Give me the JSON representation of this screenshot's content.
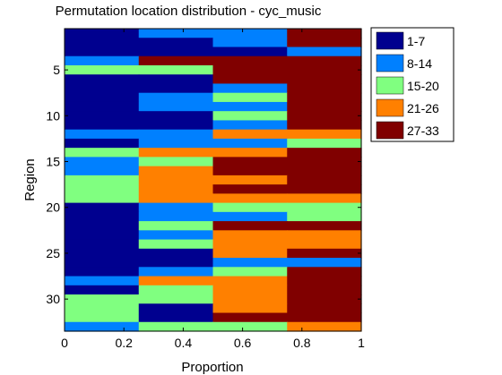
{
  "chart_data": {
    "type": "heatmap",
    "title": "Permutation location distribution - cyc_music",
    "xlabel": "Proportion",
    "ylabel": "Region",
    "xlim": [
      0,
      1
    ],
    "ylim": [
      0.5,
      33.5
    ],
    "x_ticks": [
      "0",
      "0.2",
      "0.4",
      "0.6",
      "0.8",
      "1"
    ],
    "x_tick_values": [
      0,
      0.2,
      0.4,
      0.6,
      0.8,
      1
    ],
    "y_ticks": [
      "5",
      "10",
      "15",
      "20",
      "25",
      "30"
    ],
    "y_tick_values": [
      5,
      10,
      15,
      20,
      25,
      30
    ],
    "column_bounds": [
      0,
      0.25,
      0.5,
      0.75,
      1
    ],
    "legend": [
      {
        "label": "1-7",
        "color": "#00008f"
      },
      {
        "label": "8-14",
        "color": "#0080ff"
      },
      {
        "label": "15-20",
        "color": "#80ff80"
      },
      {
        "label": "21-26",
        "color": "#ff8000"
      },
      {
        "label": "27-33",
        "color": "#800000"
      }
    ],
    "regions": [
      [
        0,
        1,
        1,
        4
      ],
      [
        0,
        0,
        1,
        4
      ],
      [
        0,
        0,
        0,
        1
      ],
      [
        1,
        4,
        4,
        4
      ],
      [
        2,
        2,
        4,
        4
      ],
      [
        0,
        0,
        4,
        4
      ],
      [
        0,
        0,
        1,
        4
      ],
      [
        0,
        1,
        2,
        4
      ],
      [
        0,
        1,
        1,
        4
      ],
      [
        0,
        0,
        2,
        4
      ],
      [
        0,
        0,
        1,
        4
      ],
      [
        1,
        1,
        3,
        3
      ],
      [
        0,
        1,
        1,
        2
      ],
      [
        2,
        3,
        3,
        4
      ],
      [
        1,
        2,
        4,
        4
      ],
      [
        1,
        3,
        4,
        4
      ],
      [
        2,
        3,
        3,
        4
      ],
      [
        2,
        3,
        4,
        4
      ],
      [
        2,
        3,
        3,
        3
      ],
      [
        0,
        1,
        2,
        2
      ],
      [
        0,
        1,
        1,
        2
      ],
      [
        0,
        2,
        4,
        4
      ],
      [
        0,
        1,
        3,
        3
      ],
      [
        0,
        2,
        3,
        3
      ],
      [
        0,
        0,
        3,
        4
      ],
      [
        0,
        0,
        1,
        1
      ],
      [
        0,
        1,
        2,
        4
      ],
      [
        1,
        3,
        3,
        4
      ],
      [
        0,
        2,
        3,
        4
      ],
      [
        2,
        2,
        3,
        4
      ],
      [
        2,
        0,
        3,
        4
      ],
      [
        2,
        0,
        4,
        4
      ],
      [
        1,
        2,
        2,
        3
      ]
    ]
  }
}
